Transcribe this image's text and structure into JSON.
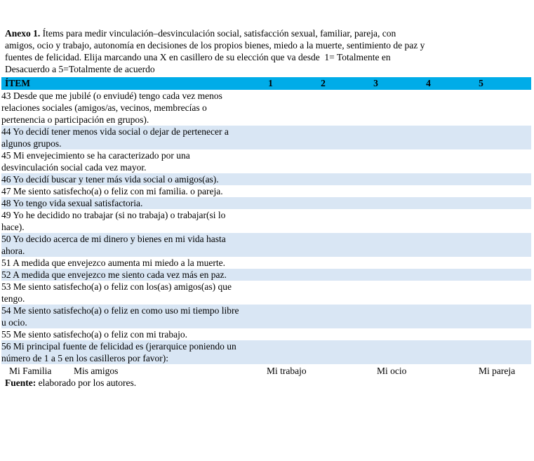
{
  "intro": {
    "bold_label": "Anexo 1.",
    "lines": [
      " Ítems para medir vinculación–desvinculación social, satisfacción sexual, familiar, pareja, con",
      "amigos, ocio y trabajo, autonomía en decisiones de los propios bienes, miedo a la muerte, sentimiento de paz y",
      "fuentes de felicidad. Elija marcando una X en casillero de su elección que va desde  1= Totalmente en",
      "Desacuerdo a 5=Totalmente de acuerdo"
    ]
  },
  "table": {
    "header": {
      "item_label": "ÍTEM",
      "scale": [
        "1",
        "2",
        "3",
        "4",
        "5"
      ]
    },
    "rows": [
      {
        "text": "43 Desde que me jubilé (o enviudé) tengo cada vez menos relaciones sociales (amigos/as, vecinos, membrecías o pertenencia o participación en grupos).",
        "shaded": false
      },
      {
        "text": "44 Yo decidí tener menos vida social o dejar de pertenecer a algunos grupos.",
        "shaded": true
      },
      {
        "text": "45 Mi envejecimiento se ha caracterizado por una desvinculación social cada vez mayor.",
        "shaded": false
      },
      {
        "text": "46 Yo decidí buscar y tener más vida social o amigos(as).",
        "shaded": true
      },
      {
        "text": "47 Me siento satisfecho(a) o feliz con mi familia. o pareja.",
        "shaded": false
      },
      {
        "text": "48 Yo tengo vida sexual satisfactoria.",
        "shaded": true
      },
      {
        "text": "49 Yo he decidido no trabajar  (si no trabaja) o trabajar(si lo hace).",
        "shaded": false
      },
      {
        "text": "50 Yo decido acerca de mi dinero y bienes en mi vida hasta ahora.",
        "shaded": true
      },
      {
        "text": "51 A medida que envejezco aumenta mi miedo a la muerte.",
        "shaded": false
      },
      {
        "text": "52 A medida que envejezco me siento cada vez más en paz.",
        "shaded": true
      },
      {
        "text": "53 Me siento satisfecho(a) o feliz con los(as) amigos(as) que tengo.",
        "shaded": false
      },
      {
        "text": "54 Me siento satisfecho(a) o feliz en como uso mi tiempo libre u ocio.",
        "shaded": true
      },
      {
        "text": "55 Me siento satisfecho(a) o feliz con mi trabajo.",
        "shaded": false
      },
      {
        "text": "56 Mi principal fuente de felicidad es (jerarquice poniendo un número de 1 a 5 en los casilleros por favor):",
        "shaded": true
      }
    ],
    "happiness_options": [
      "Mi Familia",
      "Mis amigos",
      "Mi trabajo",
      "Mi ocio",
      "Mi pareja"
    ]
  },
  "footer": {
    "bold_label": "Fuente:",
    "text": " elaborado por los autores."
  },
  "colors": {
    "header_bg": "#00ACE8",
    "row_shaded_bg": "#D9E6F4"
  }
}
